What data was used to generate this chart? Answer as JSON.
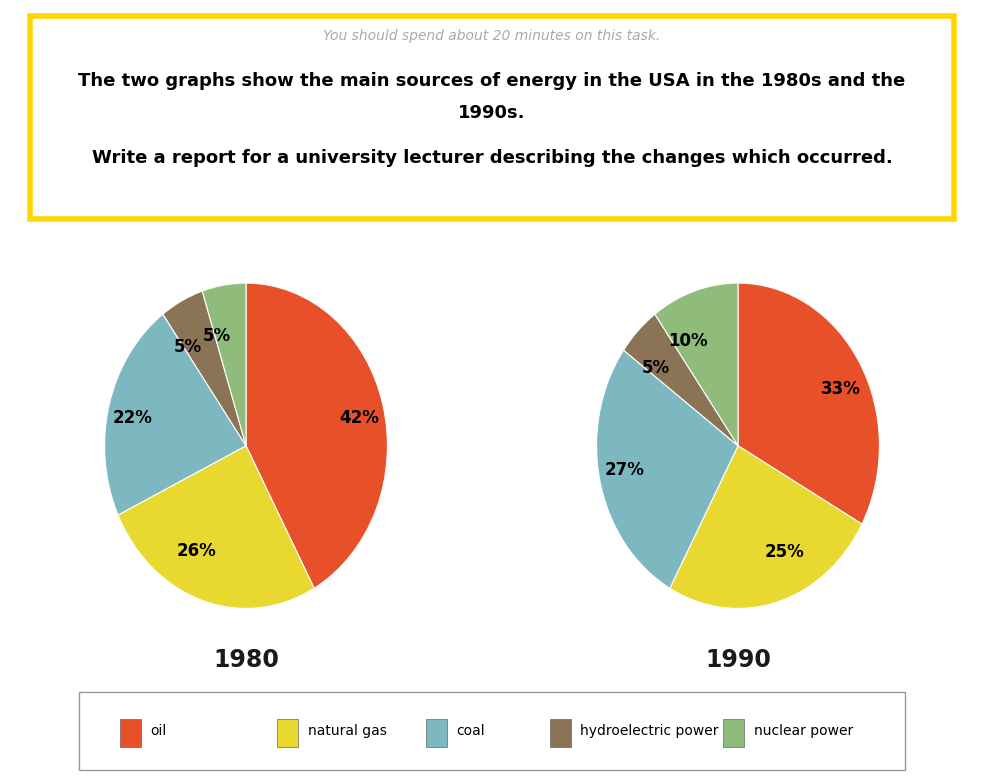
{
  "title_italic": "You should spend about 20 minutes on this task.",
  "title_bold_line1": "The two graphs show the main sources of energy in the USA in the 1980s and the",
  "title_bold_line2": "1990s.",
  "title_bold_line3": "Write a report for a university lecturer describing the changes which occurred.",
  "pie1_label": "1980",
  "pie2_label": "1990",
  "categories": [
    "oil",
    "natural gas",
    "coal",
    "hydroelectric power",
    "nuclear power"
  ],
  "colors": [
    "#E8502A",
    "#E8D830",
    "#7DB8C0",
    "#8B7355",
    "#8FBC7A"
  ],
  "pie1_values": [
    42,
    26,
    22,
    5,
    5
  ],
  "pie2_values": [
    33,
    25,
    27,
    5,
    10
  ],
  "pie1_labels": [
    "42%",
    "26%",
    "22%",
    "5%",
    "5%"
  ],
  "pie2_labels": [
    "33%",
    "25%",
    "27%",
    "5%",
    "10%"
  ],
  "box_color": "#FFD700",
  "background_color": "#FFFFFF",
  "label_fontsize": 12,
  "year_fontsize": 17
}
